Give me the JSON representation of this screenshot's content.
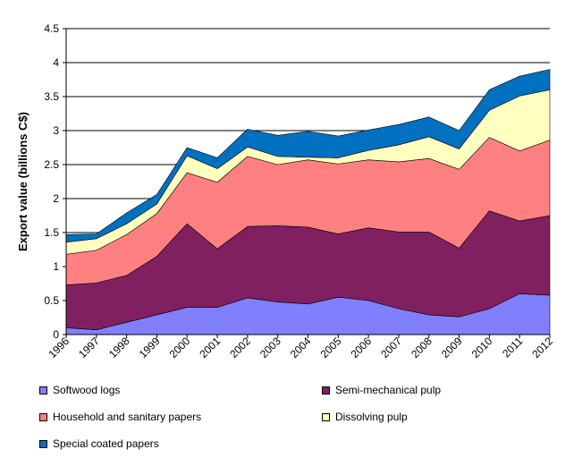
{
  "chart_data": {
    "type": "area",
    "stacked": true,
    "ylabel": "Export value (billions C$)",
    "xlabel": "",
    "ylim": [
      0,
      4.5
    ],
    "yticks": [
      "0",
      "0.5",
      "1",
      "1.5",
      "2",
      "2.5",
      "3",
      "3.5",
      "4",
      "4.5"
    ],
    "grid": true,
    "legend_position": "bottom",
    "categories": [
      "1996",
      "1997",
      "1998",
      "1999",
      "2000",
      "2001",
      "2002",
      "2003",
      "2004",
      "2005",
      "2006",
      "2007",
      "2008",
      "2009",
      "2010",
      "2011",
      "2012"
    ],
    "series": [
      {
        "name": "Softwood logs",
        "color": "#8080ff",
        "values": [
          0.1,
          0.07,
          0.18,
          0.29,
          0.4,
          0.4,
          0.54,
          0.48,
          0.45,
          0.55,
          0.5,
          0.38,
          0.29,
          0.26,
          0.38,
          0.6,
          0.58
        ]
      },
      {
        "name": "Semi-mechanical pulp",
        "color": "#802060",
        "values": [
          0.63,
          0.69,
          0.69,
          0.86,
          1.23,
          0.86,
          1.05,
          1.12,
          1.13,
          0.93,
          1.07,
          1.13,
          1.22,
          1.01,
          1.44,
          1.07,
          1.17
        ]
      },
      {
        "name": "Household and sanitary papers",
        "color": "#ff8080",
        "values": [
          0.45,
          0.48,
          0.6,
          0.63,
          0.75,
          0.98,
          1.03,
          0.9,
          0.99,
          1.03,
          1.0,
          1.03,
          1.08,
          1.16,
          1.08,
          1.03,
          1.11
        ]
      },
      {
        "name": "Dissolving pulp",
        "color": "#ffffc0",
        "values": [
          0.18,
          0.17,
          0.16,
          0.14,
          0.25,
          0.2,
          0.14,
          0.12,
          0.04,
          0.09,
          0.14,
          0.25,
          0.32,
          0.3,
          0.4,
          0.81,
          0.74
        ]
      },
      {
        "name": "Special coated papers",
        "color": "#0070c0",
        "values": [
          0.11,
          0.07,
          0.16,
          0.14,
          0.12,
          0.16,
          0.26,
          0.31,
          0.38,
          0.32,
          0.3,
          0.3,
          0.29,
          0.27,
          0.3,
          0.29,
          0.3
        ]
      }
    ]
  }
}
